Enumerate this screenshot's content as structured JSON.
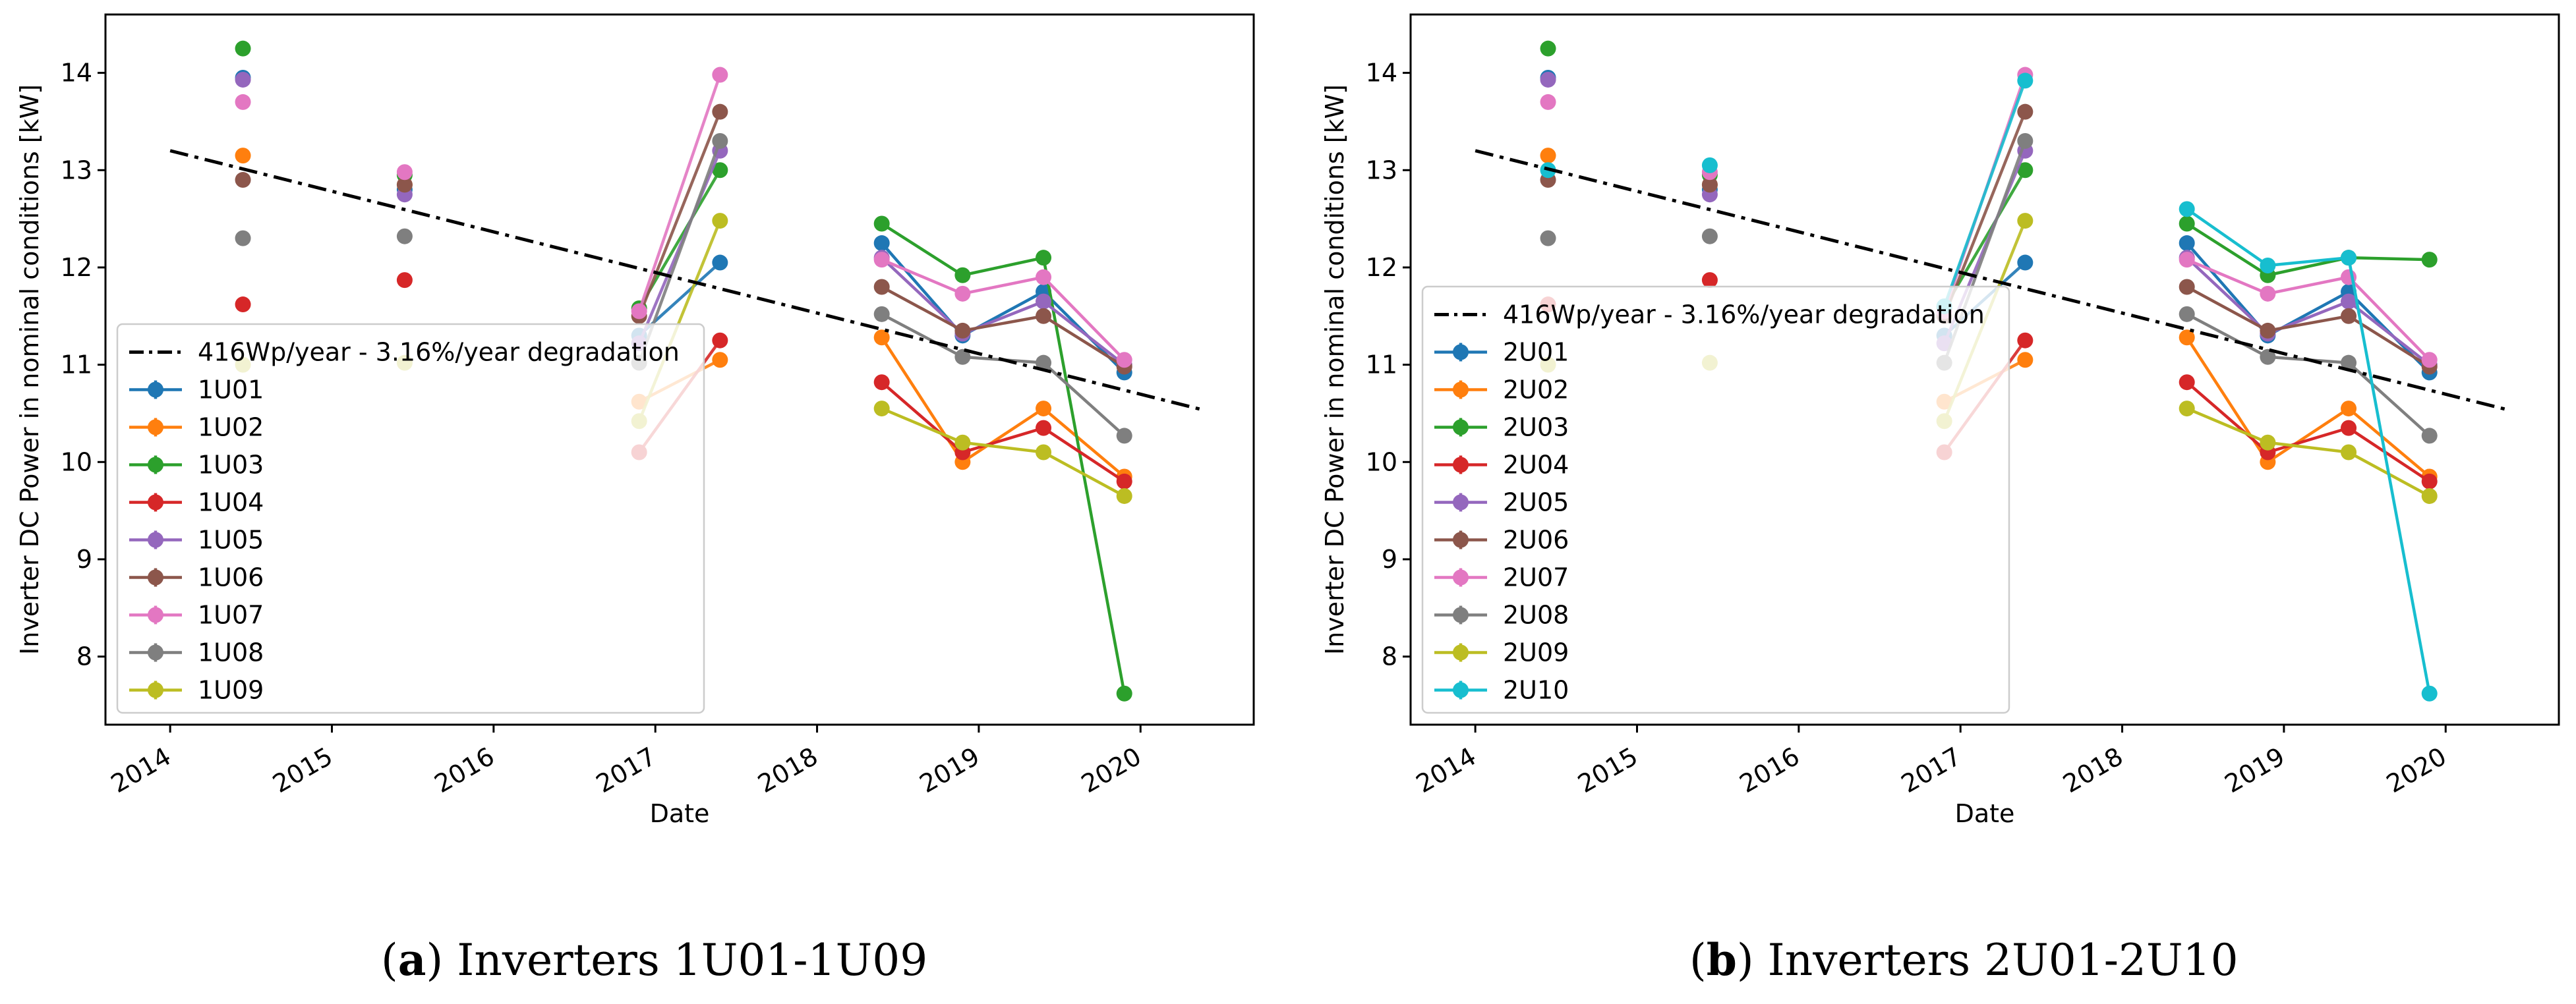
{
  "captions": {
    "a": {
      "label": "a",
      "text": "Inverters 1U01-1U09"
    },
    "b": {
      "label": "b",
      "text": "Inverters 2U01-2U10"
    }
  },
  "colors": {
    "C0": "#1f77b4",
    "C1": "#ff7f0e",
    "C2": "#2ca02c",
    "C3": "#d62728",
    "C4": "#9467bd",
    "C5": "#8c564b",
    "C6": "#e377c2",
    "C7": "#7f7f7f",
    "C8": "#bcbd22",
    "C9": "#17becf",
    "trend": "#000000"
  },
  "chart_data": [
    {
      "type": "line",
      "panel": "a",
      "xlabel": "Date",
      "ylabel": "Inverter DC Power in nominal conditions [kW]",
      "xlim": [
        2013.6,
        2020.7
      ],
      "ylim": [
        7.3,
        14.6
      ],
      "xticks": [
        "2014",
        "2015",
        "2016",
        "2017",
        "2018",
        "2019",
        "2020"
      ],
      "yticks": [
        "8",
        "9",
        "10",
        "11",
        "12",
        "13",
        "14"
      ],
      "trend": {
        "name": "416Wp/year - 3.16%/year degradation",
        "x": [
          2014.0,
          2020.4
        ],
        "y": [
          13.2,
          10.53
        ]
      },
      "x": [
        2014.45,
        2015.45,
        2016.9,
        2017.4,
        2018.4,
        2018.9,
        2019.4,
        2019.9
      ],
      "series": [
        {
          "name": "1U01",
          "color": "C0",
          "values": [
            13.95,
            12.8,
            11.3,
            12.05,
            12.25,
            11.3,
            11.75,
            10.92
          ]
        },
        {
          "name": "1U02",
          "color": "C1",
          "values": [
            13.15,
            12.85,
            10.62,
            11.05,
            11.28,
            10.0,
            10.55,
            9.85
          ]
        },
        {
          "name": "1U03",
          "color": "C2",
          "values": [
            14.25,
            12.95,
            11.58,
            13.0,
            12.45,
            11.92,
            12.1,
            7.62
          ]
        },
        {
          "name": "1U04",
          "color": "C3",
          "values": [
            11.62,
            11.87,
            10.1,
            11.25,
            10.82,
            10.1,
            10.35,
            9.8
          ]
        },
        {
          "name": "1U05",
          "color": "C4",
          "values": [
            13.93,
            12.75,
            11.22,
            13.2,
            12.1,
            11.32,
            11.65,
            11.0
          ]
        },
        {
          "name": "1U06",
          "color": "C5",
          "values": [
            12.9,
            12.85,
            11.5,
            13.6,
            11.8,
            11.35,
            11.5,
            10.98
          ]
        },
        {
          "name": "1U07",
          "color": "C6",
          "values": [
            13.7,
            12.98,
            11.55,
            13.98,
            12.08,
            11.73,
            11.9,
            11.05
          ]
        },
        {
          "name": "1U08",
          "color": "C7",
          "values": [
            12.3,
            12.32,
            11.02,
            13.3,
            11.52,
            11.08,
            11.02,
            10.27
          ]
        },
        {
          "name": "1U09",
          "color": "C8",
          "values": [
            11.0,
            11.02,
            10.42,
            12.48,
            10.55,
            10.2,
            10.1,
            9.65
          ]
        }
      ]
    },
    {
      "type": "line",
      "panel": "b",
      "xlabel": "Date",
      "ylabel": "Inverter DC Power in nominal conditions [kW]",
      "xlim": [
        2013.6,
        2020.7
      ],
      "ylim": [
        7.3,
        14.6
      ],
      "xticks": [
        "2014",
        "2015",
        "2016",
        "2017",
        "2018",
        "2019",
        "2020"
      ],
      "yticks": [
        "8",
        "9",
        "10",
        "11",
        "12",
        "13",
        "14"
      ],
      "trend": {
        "name": "416Wp/year - 3.16%/year degradation",
        "x": [
          2014.0,
          2020.4
        ],
        "y": [
          13.2,
          10.53
        ]
      },
      "x": [
        2014.45,
        2015.45,
        2016.9,
        2017.4,
        2018.4,
        2018.9,
        2019.4,
        2019.9
      ],
      "series": [
        {
          "name": "2U01",
          "color": "C0",
          "values": [
            13.95,
            12.8,
            11.3,
            12.05,
            12.25,
            11.3,
            11.75,
            10.92
          ]
        },
        {
          "name": "2U02",
          "color": "C1",
          "values": [
            13.15,
            12.85,
            10.62,
            11.05,
            11.28,
            10.0,
            10.55,
            9.85
          ]
        },
        {
          "name": "2U03",
          "color": "C2",
          "values": [
            14.25,
            12.95,
            11.58,
            13.0,
            12.45,
            11.92,
            12.1,
            12.08
          ]
        },
        {
          "name": "2U04",
          "color": "C3",
          "values": [
            11.62,
            11.87,
            10.1,
            11.25,
            10.82,
            10.1,
            10.35,
            9.8
          ]
        },
        {
          "name": "2U05",
          "color": "C4",
          "values": [
            13.93,
            12.75,
            11.22,
            13.2,
            12.1,
            11.32,
            11.65,
            11.0
          ]
        },
        {
          "name": "2U06",
          "color": "C5",
          "values": [
            12.9,
            12.85,
            11.5,
            13.6,
            11.8,
            11.35,
            11.5,
            10.98
          ]
        },
        {
          "name": "2U07",
          "color": "C6",
          "values": [
            13.7,
            12.98,
            11.55,
            13.98,
            12.08,
            11.73,
            11.9,
            11.05
          ]
        },
        {
          "name": "2U08",
          "color": "C7",
          "values": [
            12.3,
            12.32,
            11.02,
            13.3,
            11.52,
            11.08,
            11.02,
            10.27
          ]
        },
        {
          "name": "2U09",
          "color": "C8",
          "values": [
            11.0,
            11.02,
            10.42,
            12.48,
            10.55,
            10.2,
            10.1,
            9.65
          ]
        },
        {
          "name": "2U10",
          "color": "C9",
          "values": [
            13.0,
            13.05,
            11.6,
            13.92,
            12.6,
            12.02,
            12.1,
            7.62
          ]
        }
      ]
    }
  ]
}
